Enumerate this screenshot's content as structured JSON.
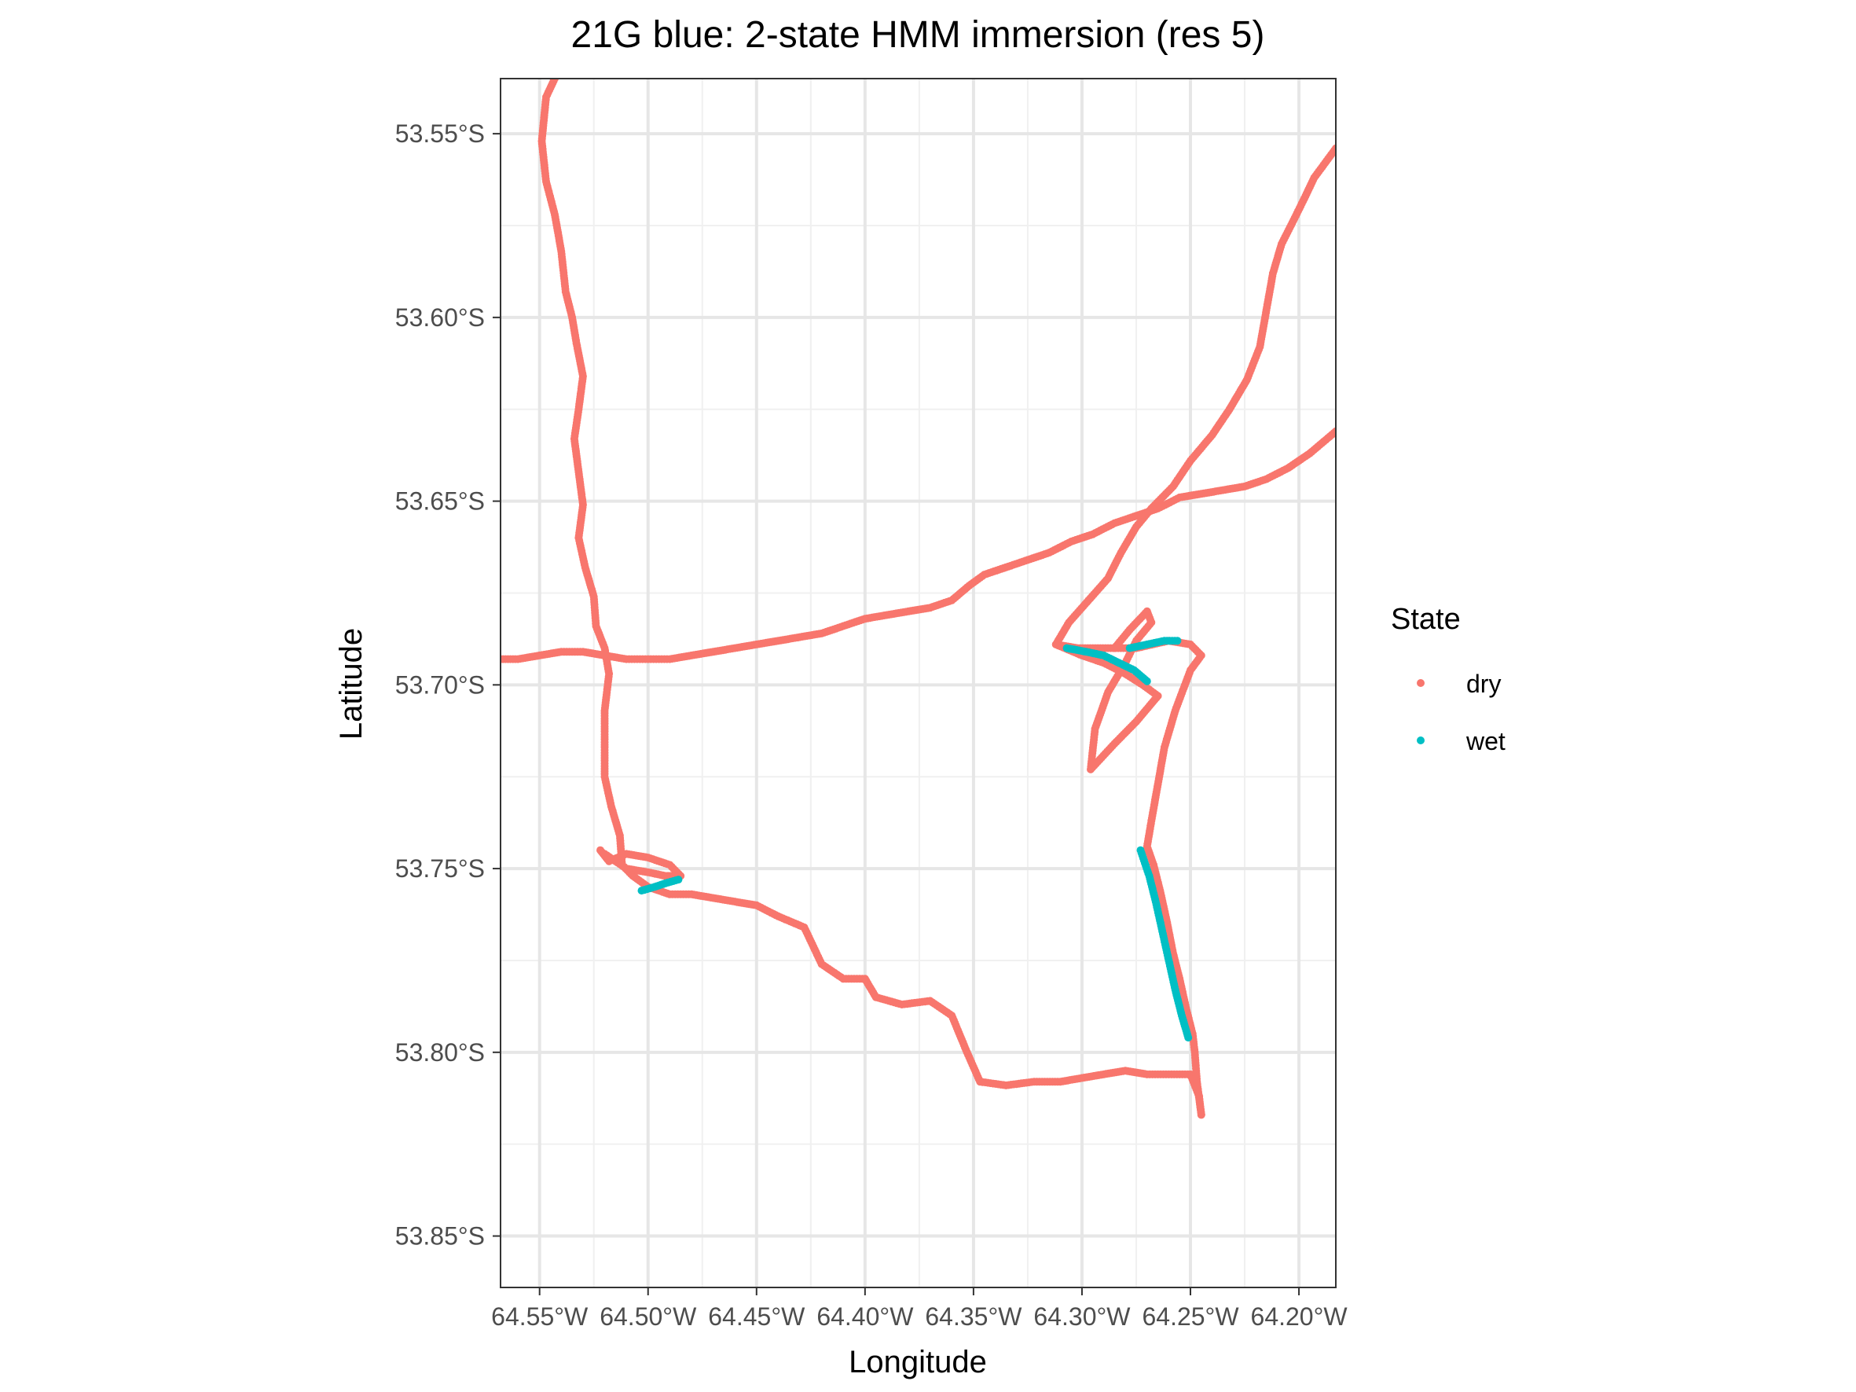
{
  "chart_data": {
    "type": "scatter",
    "title": "21G blue: 2-state HMM immersion (res 5)",
    "xlabel": "Longitude",
    "ylabel": "Latitude",
    "xlim": [
      -64.568,
      -64.183
    ],
    "ylim": [
      -53.864,
      -53.535
    ],
    "x_ticks": [
      {
        "value": -64.55,
        "label": "64.55°W"
      },
      {
        "value": -64.5,
        "label": "64.50°W"
      },
      {
        "value": -64.45,
        "label": "64.45°W"
      },
      {
        "value": -64.4,
        "label": "64.40°W"
      },
      {
        "value": -64.35,
        "label": "64.35°W"
      },
      {
        "value": -64.3,
        "label": "64.30°W"
      },
      {
        "value": -64.25,
        "label": "64.25°W"
      },
      {
        "value": -64.2,
        "label": "64.20°W"
      }
    ],
    "y_ticks": [
      {
        "value": -53.55,
        "label": "53.55°S"
      },
      {
        "value": -53.6,
        "label": "53.60°S"
      },
      {
        "value": -53.65,
        "label": "53.65°S"
      },
      {
        "value": -53.7,
        "label": "53.70°S"
      },
      {
        "value": -53.75,
        "label": "53.75°S"
      },
      {
        "value": -53.8,
        "label": "53.80°S"
      },
      {
        "value": -53.85,
        "label": "53.85°S"
      }
    ],
    "grid": true,
    "legend": {
      "title": "State",
      "placement": "right",
      "items": [
        {
          "label": "dry",
          "color": "#F8766D"
        },
        {
          "label": "wet",
          "color": "#00BFC4"
        }
      ]
    },
    "series": [
      {
        "name": "dry",
        "color": "#F8766D",
        "paths": [
          [
            [
              -64.543,
              -53.535
            ],
            [
              -64.547,
              -53.54
            ],
            [
              -64.549,
              -53.552
            ],
            [
              -64.547,
              -53.563
            ],
            [
              -64.543,
              -53.572
            ],
            [
              -64.54,
              -53.582
            ],
            [
              -64.538,
              -53.593
            ],
            [
              -64.535,
              -53.6
            ],
            [
              -64.533,
              -53.607
            ],
            [
              -64.53,
              -53.616
            ],
            [
              -64.532,
              -53.625
            ],
            [
              -64.534,
              -53.633
            ],
            [
              -64.532,
              -53.642
            ],
            [
              -64.53,
              -53.651
            ],
            [
              -64.532,
              -53.66
            ],
            [
              -64.529,
              -53.668
            ],
            [
              -64.525,
              -53.676
            ],
            [
              -64.524,
              -53.684
            ],
            [
              -64.52,
              -53.69
            ],
            [
              -64.518,
              -53.697
            ],
            [
              -64.52,
              -53.707
            ],
            [
              -64.52,
              -53.717
            ],
            [
              -64.52,
              -53.725
            ],
            [
              -64.517,
              -53.733
            ],
            [
              -64.513,
              -53.741
            ],
            [
              -64.512,
              -53.749
            ],
            [
              -64.507,
              -53.752
            ],
            [
              -64.5,
              -53.755
            ],
            [
              -64.49,
              -53.757
            ],
            [
              -64.48,
              -53.757
            ],
            [
              -64.47,
              -53.758
            ],
            [
              -64.46,
              -53.759
            ],
            [
              -64.45,
              -53.76
            ],
            [
              -64.44,
              -53.763
            ],
            [
              -64.428,
              -53.766
            ],
            [
              -64.42,
              -53.776
            ],
            [
              -64.41,
              -53.78
            ],
            [
              -64.4,
              -53.78
            ],
            [
              -64.395,
              -53.785
            ],
            [
              -64.383,
              -53.787
            ],
            [
              -64.37,
              -53.786
            ],
            [
              -64.36,
              -53.79
            ],
            [
              -64.353,
              -53.8
            ],
            [
              -64.347,
              -53.808
            ],
            [
              -64.335,
              -53.809
            ],
            [
              -64.322,
              -53.808
            ],
            [
              -64.31,
              -53.808
            ],
            [
              -64.3,
              -53.807
            ],
            [
              -64.29,
              -53.806
            ],
            [
              -64.28,
              -53.805
            ],
            [
              -64.27,
              -53.806
            ],
            [
              -64.26,
              -53.806
            ],
            [
              -64.25,
              -53.806
            ],
            [
              -64.246,
              -53.812
            ],
            [
              -64.245,
              -53.817
            ]
          ],
          [
            [
              -64.245,
              -53.817
            ],
            [
              -64.247,
              -53.808
            ],
            [
              -64.248,
              -53.8
            ],
            [
              -64.249,
              -53.795
            ],
            [
              -64.252,
              -53.788
            ],
            [
              -64.255,
              -53.78
            ],
            [
              -64.258,
              -53.773
            ],
            [
              -64.261,
              -53.764
            ],
            [
              -64.264,
              -53.756
            ],
            [
              -64.267,
              -53.749
            ],
            [
              -64.27,
              -53.744
            ],
            [
              -64.268,
              -53.737
            ],
            [
              -64.265,
              -53.727
            ],
            [
              -64.262,
              -53.717
            ],
            [
              -64.257,
              -53.707
            ],
            [
              -64.25,
              -53.696
            ],
            [
              -64.245,
              -53.692
            ],
            [
              -64.25,
              -53.689
            ],
            [
              -64.26,
              -53.688
            ],
            [
              -64.275,
              -53.69
            ],
            [
              -64.288,
              -53.69
            ],
            [
              -64.302,
              -53.69
            ],
            [
              -64.312,
              -53.689
            ],
            [
              -64.306,
              -53.683
            ],
            [
              -64.297,
              -53.677
            ],
            [
              -64.288,
              -53.671
            ],
            [
              -64.282,
              -53.664
            ],
            [
              -64.275,
              -53.657
            ],
            [
              -64.268,
              -53.652
            ],
            [
              -64.258,
              -53.646
            ],
            [
              -64.25,
              -53.639
            ],
            [
              -64.24,
              -53.632
            ],
            [
              -64.232,
              -53.625
            ],
            [
              -64.224,
              -53.617
            ],
            [
              -64.218,
              -53.608
            ],
            [
              -64.215,
              -53.598
            ],
            [
              -64.212,
              -53.588
            ],
            [
              -64.208,
              -53.58
            ],
            [
              -64.202,
              -53.573
            ],
            [
              -64.197,
              -53.567
            ],
            [
              -64.193,
              -53.562
            ],
            [
              -64.188,
              -53.558
            ],
            [
              -64.183,
              -53.554
            ]
          ],
          [
            [
              -64.568,
              -53.693
            ],
            [
              -64.56,
              -53.693
            ],
            [
              -64.55,
              -53.692
            ],
            [
              -64.54,
              -53.691
            ],
            [
              -64.53,
              -53.691
            ],
            [
              -64.52,
              -53.692
            ],
            [
              -64.51,
              -53.693
            ],
            [
              -64.5,
              -53.693
            ],
            [
              -64.49,
              -53.693
            ],
            [
              -64.48,
              -53.692
            ],
            [
              -64.47,
              -53.691
            ],
            [
              -64.46,
              -53.69
            ],
            [
              -64.45,
              -53.689
            ],
            [
              -64.44,
              -53.688
            ],
            [
              -64.43,
              -53.687
            ],
            [
              -64.42,
              -53.686
            ],
            [
              -64.41,
              -53.684
            ],
            [
              -64.4,
              -53.682
            ],
            [
              -64.39,
              -53.681
            ],
            [
              -64.38,
              -53.68
            ],
            [
              -64.37,
              -53.679
            ],
            [
              -64.36,
              -53.677
            ],
            [
              -64.352,
              -53.673
            ],
            [
              -64.345,
              -53.67
            ],
            [
              -64.335,
              -53.668
            ],
            [
              -64.325,
              -53.666
            ],
            [
              -64.315,
              -53.664
            ],
            [
              -64.305,
              -53.661
            ],
            [
              -64.295,
              -53.659
            ],
            [
              -64.285,
              -53.656
            ],
            [
              -64.275,
              -53.654
            ],
            [
              -64.265,
              -53.652
            ],
            [
              -64.255,
              -53.649
            ],
            [
              -64.245,
              -53.648
            ],
            [
              -64.235,
              -53.647
            ],
            [
              -64.225,
              -53.646
            ],
            [
              -64.215,
              -53.644
            ],
            [
              -64.205,
              -53.641
            ],
            [
              -64.195,
              -53.637
            ],
            [
              -64.183,
              -53.631
            ]
          ],
          [
            [
              -64.312,
              -53.689
            ],
            [
              -64.3,
              -53.692
            ],
            [
              -64.29,
              -53.694
            ],
            [
              -64.28,
              -53.697
            ],
            [
              -64.272,
              -53.7
            ],
            [
              -64.265,
              -53.703
            ],
            [
              -64.275,
              -53.71
            ],
            [
              -64.285,
              -53.716
            ],
            [
              -64.296,
              -53.723
            ],
            [
              -64.294,
              -53.712
            ],
            [
              -64.288,
              -53.702
            ],
            [
              -64.28,
              -53.694
            ],
            [
              -64.275,
              -53.688
            ],
            [
              -64.268,
              -53.683
            ],
            [
              -64.27,
              -53.68
            ],
            [
              -64.278,
              -53.685
            ],
            [
              -64.285,
              -53.69
            ]
          ],
          [
            [
              -64.522,
              -53.745
            ],
            [
              -64.518,
              -53.748
            ],
            [
              -64.51,
              -53.746
            ],
            [
              -64.5,
              -53.747
            ],
            [
              -64.49,
              -53.749
            ],
            [
              -64.485,
              -53.752
            ],
            [
              -64.492,
              -53.752
            ],
            [
              -64.5,
              -53.751
            ],
            [
              -64.51,
              -53.75
            ],
            [
              -64.52,
              -53.746
            ]
          ]
        ]
      },
      {
        "name": "wet",
        "color": "#00BFC4",
        "paths": [
          [
            [
              -64.503,
              -53.756
            ],
            [
              -64.497,
              -53.755
            ],
            [
              -64.492,
              -53.754
            ],
            [
              -64.486,
              -53.753
            ]
          ],
          [
            [
              -64.273,
              -53.745
            ],
            [
              -64.269,
              -53.752
            ],
            [
              -64.266,
              -53.759
            ],
            [
              -64.263,
              -53.767
            ],
            [
              -64.26,
              -53.775
            ],
            [
              -64.257,
              -53.783
            ],
            [
              -64.254,
              -53.79
            ],
            [
              -64.251,
              -53.796
            ]
          ],
          [
            [
              -64.307,
              -53.69
            ],
            [
              -64.298,
              -53.691
            ],
            [
              -64.29,
              -53.692
            ],
            [
              -64.283,
              -53.694
            ],
            [
              -64.276,
              -53.696
            ],
            [
              -64.27,
              -53.699
            ]
          ],
          [
            [
              -64.278,
              -53.69
            ],
            [
              -64.27,
              -53.689
            ],
            [
              -64.262,
              -53.688
            ],
            [
              -64.256,
              -53.688
            ]
          ]
        ]
      }
    ]
  }
}
